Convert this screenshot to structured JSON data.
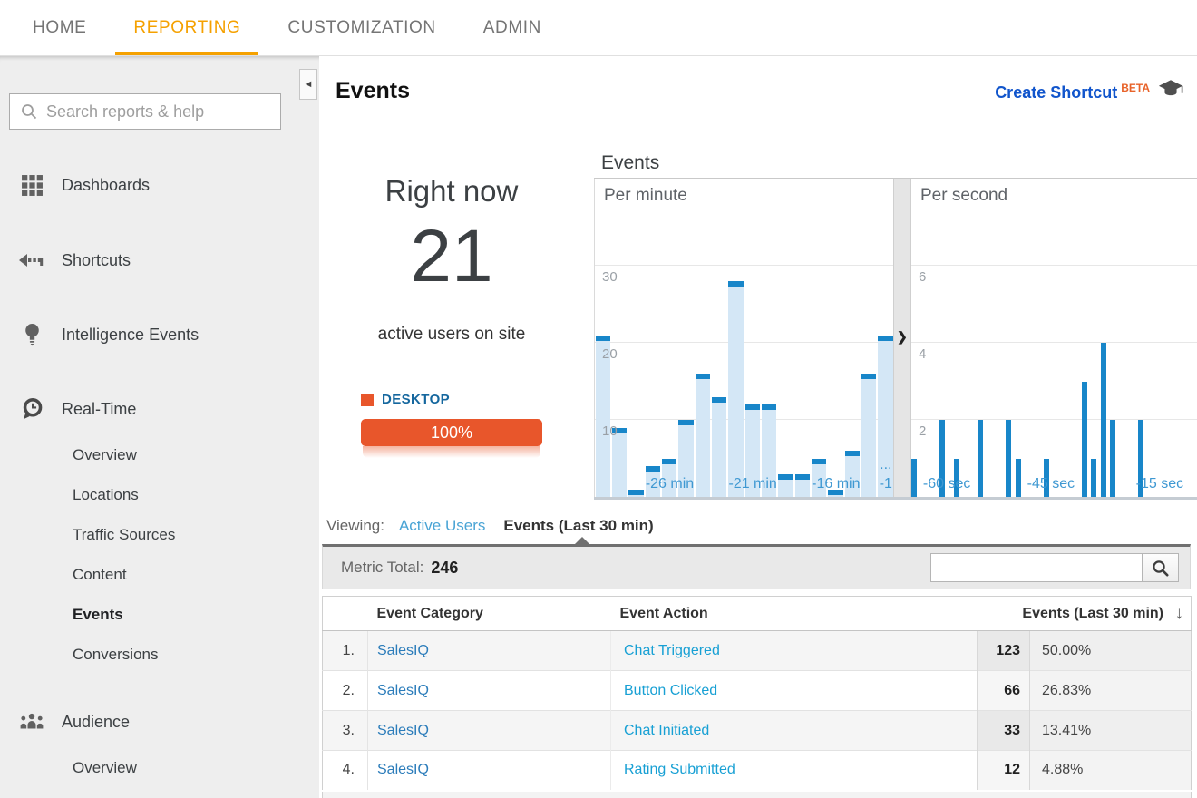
{
  "nav": {
    "tabs": [
      {
        "label": "HOME",
        "active": false
      },
      {
        "label": "REPORTING",
        "active": true
      },
      {
        "label": "CUSTOMIZATION",
        "active": false
      },
      {
        "label": "ADMIN",
        "active": false
      }
    ]
  },
  "sidebar": {
    "search_placeholder": "Search reports & help",
    "items": [
      {
        "label": "Dashboards",
        "icon": "dashboards-icon"
      },
      {
        "label": "Shortcuts",
        "icon": "shortcuts-icon"
      },
      {
        "label": "Intelligence Events",
        "icon": "intelligence-icon"
      },
      {
        "label": "Real-Time",
        "icon": "realtime-icon",
        "children": [
          "Overview",
          "Locations",
          "Traffic Sources",
          "Content",
          "Events",
          "Conversions"
        ],
        "active_child": "Events"
      },
      {
        "label": "Audience",
        "icon": "audience-icon",
        "children": [
          "Overview"
        ],
        "active_child": ""
      }
    ]
  },
  "header": {
    "title": "Events",
    "create_shortcut": "Create Shortcut",
    "beta": "BETA"
  },
  "right_now": {
    "title": "Right now",
    "count": "21",
    "subtitle": "active users on site",
    "legend_label": "DESKTOP",
    "bar_label": "100%"
  },
  "charts": {
    "title": "Events"
  },
  "chart_data": [
    {
      "type": "bar",
      "title": "Events",
      "panel": "Per minute",
      "xlabel": "",
      "ylabel": "",
      "ylim": [
        0,
        32
      ],
      "yticks": [
        10,
        20,
        30
      ],
      "values": [
        21,
        9,
        1,
        4,
        5,
        10,
        16,
        13,
        28,
        12,
        12,
        3,
        3,
        5,
        1,
        6,
        16,
        21
      ],
      "x_labels": {
        "4": "-26 min",
        "9": "-21 min",
        "14": "-16 min",
        "17": "-1"
      },
      "ellipsis_at": 17,
      "bar_fill": "#d4e7f6",
      "bar_cap": "#1886c9",
      "grid": true
    },
    {
      "type": "bar",
      "title": "Events",
      "panel": "Per second",
      "xlabel": "",
      "ylabel": "",
      "ylim": [
        0,
        7
      ],
      "yticks": [
        2,
        4,
        6
      ],
      "values": [
        1,
        0,
        0,
        0,
        0,
        0,
        2,
        0,
        0,
        1,
        0,
        0,
        0,
        0,
        2,
        0,
        0,
        0,
        0,
        0,
        2,
        0,
        1,
        0,
        0,
        0,
        0,
        0,
        1,
        0,
        0,
        0,
        0,
        0,
        0,
        0,
        3,
        0,
        1,
        0,
        4,
        0,
        2,
        0,
        0,
        0,
        0,
        0,
        2,
        0,
        0,
        0,
        0,
        0,
        0,
        0,
        0,
        0,
        0,
        0
      ],
      "x_labels": {
        "7": "-60 sec",
        "29": "-45 sec",
        "52": "-15 sec"
      },
      "bar_fill": "#1886c9",
      "grid": true
    }
  ],
  "viewing": {
    "label": "Viewing:",
    "tabs": [
      {
        "label": "Active Users",
        "active": false
      },
      {
        "label": "Events (Last 30 min)",
        "active": true
      }
    ]
  },
  "metric_bar": {
    "label": "Metric Total:",
    "value": "246",
    "search_value": ""
  },
  "table": {
    "columns": [
      "Event Category",
      "Event Action",
      "Events (Last 30 min)"
    ],
    "rows": [
      {
        "num": "1.",
        "category": "SalesIQ",
        "action": "Chat Triggered",
        "events": "123",
        "percent": "50.00%"
      },
      {
        "num": "2.",
        "category": "SalesIQ",
        "action": "Button Clicked",
        "events": "66",
        "percent": "26.83%"
      },
      {
        "num": "3.",
        "category": "SalesIQ",
        "action": "Chat Initiated",
        "events": "33",
        "percent": "13.41%"
      },
      {
        "num": "4.",
        "category": "SalesIQ",
        "action": "Rating Submitted",
        "events": "12",
        "percent": "4.88%"
      }
    ]
  },
  "icons": {
    "sort_desc": "↓",
    "chevron_right": "❯",
    "collapse_left": "◄",
    "ellipsis": "..."
  },
  "colors": {
    "accent_orange": "#f5a100",
    "device_bar_orange": "#e8562b",
    "create_shortcut_blue": "#1155cc",
    "beta_orange": "#e8632a",
    "desktop_label_blue": "#15679e",
    "bar_blue": "#1886c9",
    "bar_light_blue": "#d4e7f6",
    "category_link": "#2b7cba",
    "action_link": "#18a0d4",
    "active_users_link": "#4aa4d5",
    "axis_label_blue": "#3e98d2"
  }
}
